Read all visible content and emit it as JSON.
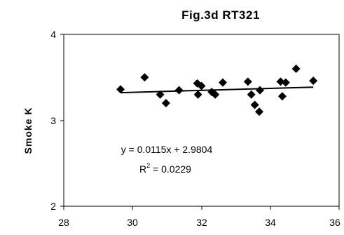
{
  "chart_data": {
    "type": "scatter",
    "title": "Fig.3d  RT321",
    "xlabel": "",
    "ylabel": "Smoke  K",
    "xlim": [
      28,
      36
    ],
    "ylim": [
      2,
      4
    ],
    "x_ticks": [
      "28",
      "30",
      "32",
      "34",
      "36"
    ],
    "y_ticks": [
      "2",
      "3",
      "4"
    ],
    "grid": false,
    "legend": "none",
    "marker": "diamond",
    "marker_color": "#000000",
    "trendline": {
      "type": "linear",
      "slope": 0.0115,
      "intercept": 2.9804,
      "equation_label": "y = 0.0115x + 2.9804",
      "r2_prefix": "R",
      "r2_exp": "2",
      "r2_value": " = 0.0229"
    },
    "points": [
      {
        "x": 29.65,
        "y": 3.36
      },
      {
        "x": 30.35,
        "y": 3.5
      },
      {
        "x": 30.8,
        "y": 3.3
      },
      {
        "x": 30.97,
        "y": 3.2
      },
      {
        "x": 31.35,
        "y": 3.35
      },
      {
        "x": 31.88,
        "y": 3.43
      },
      {
        "x": 31.9,
        "y": 3.3
      },
      {
        "x": 32.0,
        "y": 3.4
      },
      {
        "x": 32.3,
        "y": 3.33
      },
      {
        "x": 32.4,
        "y": 3.3
      },
      {
        "x": 32.62,
        "y": 3.44
      },
      {
        "x": 33.35,
        "y": 3.45
      },
      {
        "x": 33.45,
        "y": 3.3
      },
      {
        "x": 33.55,
        "y": 3.18
      },
      {
        "x": 33.68,
        "y": 3.1
      },
      {
        "x": 33.7,
        "y": 3.35
      },
      {
        "x": 34.3,
        "y": 3.45
      },
      {
        "x": 34.35,
        "y": 3.28
      },
      {
        "x": 34.45,
        "y": 3.44
      },
      {
        "x": 34.75,
        "y": 3.6
      },
      {
        "x": 35.25,
        "y": 3.46
      }
    ]
  }
}
